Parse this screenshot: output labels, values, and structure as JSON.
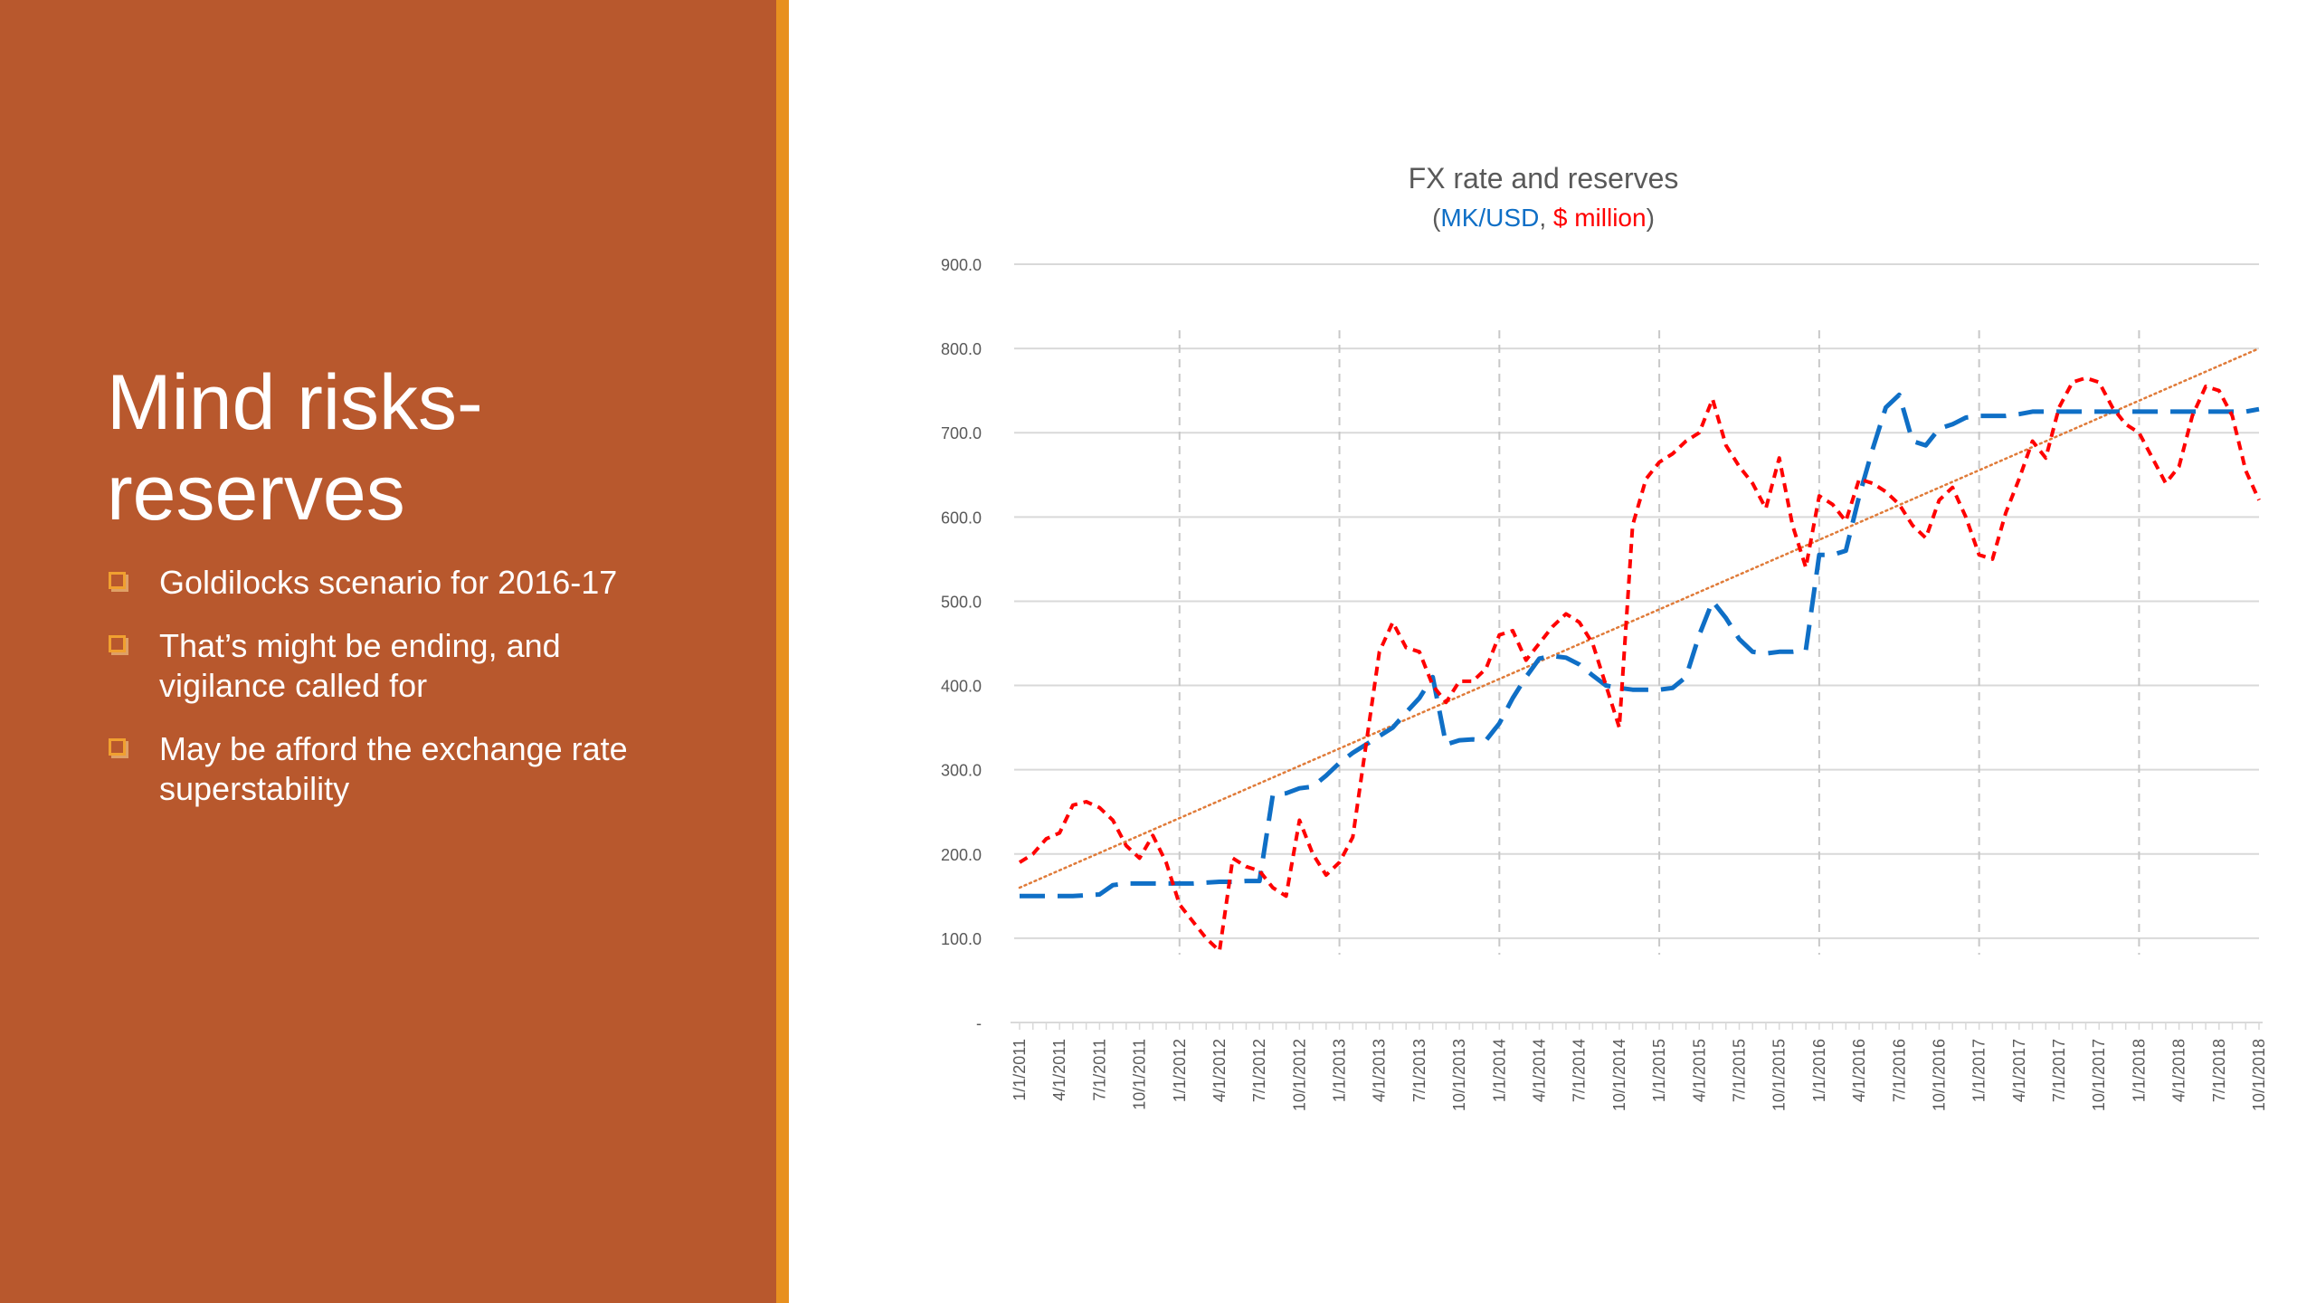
{
  "slide": {
    "title_line1": "Mind risks-",
    "title_line2": "reserves",
    "bullets": [
      {
        "text": "Goldilocks scenario for 2016-17"
      },
      {
        "text_line1": "That’s might be ending, and",
        "text_line2": "vigilance called for"
      },
      {
        "text_line1": "May be afford the exchange rate",
        "text_line2": "superstability"
      }
    ]
  },
  "colors": {
    "panel": "#b8582d",
    "accent": "#e8901f",
    "bullet": "#f0a030",
    "fx_series": "#0f6fc6",
    "reserves_series": "#ff0000",
    "trend": "#e07b39"
  },
  "chart_data": {
    "type": "line",
    "title": "FX rate and reserves",
    "subtitle_open": "(",
    "subtitle_fx": "MK/USD",
    "subtitle_sep": ", ",
    "subtitle_reserves": "$ million",
    "subtitle_close": ")",
    "ylim": [
      0,
      900
    ],
    "y_ticks": [
      {
        "value": 0,
        "label": "-"
      },
      {
        "value": 100,
        "label": "100.0"
      },
      {
        "value": 200,
        "label": "200.0"
      },
      {
        "value": 300,
        "label": "300.0"
      },
      {
        "value": 400,
        "label": "400.0"
      },
      {
        "value": 500,
        "label": "500.0"
      },
      {
        "value": 600,
        "label": "600.0"
      },
      {
        "value": 700,
        "label": "700.0"
      },
      {
        "value": 800,
        "label": "800.0"
      },
      {
        "value": 900,
        "label": "900.0"
      }
    ],
    "grid": "horizontal",
    "year_separators": [
      "1/1/2012",
      "1/1/2013",
      "1/1/2014",
      "1/1/2015",
      "1/1/2016",
      "1/1/2017",
      "1/1/2018"
    ],
    "x_labels": [
      "1/1/2011",
      "4/1/2011",
      "7/1/2011",
      "10/1/2011",
      "1/1/2012",
      "4/1/2012",
      "7/1/2012",
      "10/1/2012",
      "1/1/2013",
      "4/1/2013",
      "7/1/2013",
      "10/1/2013",
      "1/1/2014",
      "4/1/2014",
      "7/1/2014",
      "10/1/2014",
      "1/1/2015",
      "4/1/2015",
      "7/1/2015",
      "10/1/2015",
      "1/1/2016",
      "4/1/2016",
      "7/1/2016",
      "10/1/2016",
      "1/1/2017",
      "4/1/2017",
      "7/1/2017",
      "10/1/2017",
      "1/1/2018",
      "4/1/2018",
      "7/1/2018",
      "10/1/2018"
    ],
    "x": [
      "1/1/2011",
      "2/1/2011",
      "3/1/2011",
      "4/1/2011",
      "5/1/2011",
      "6/1/2011",
      "7/1/2011",
      "8/1/2011",
      "9/1/2011",
      "10/1/2011",
      "11/1/2011",
      "12/1/2011",
      "1/1/2012",
      "2/1/2012",
      "3/1/2012",
      "4/1/2012",
      "5/1/2012",
      "6/1/2012",
      "7/1/2012",
      "8/1/2012",
      "9/1/2012",
      "10/1/2012",
      "11/1/2012",
      "12/1/2012",
      "1/1/2013",
      "2/1/2013",
      "3/1/2013",
      "4/1/2013",
      "5/1/2013",
      "6/1/2013",
      "7/1/2013",
      "8/1/2013",
      "9/1/2013",
      "10/1/2013",
      "11/1/2013",
      "12/1/2013",
      "1/1/2014",
      "2/1/2014",
      "3/1/2014",
      "4/1/2014",
      "5/1/2014",
      "6/1/2014",
      "7/1/2014",
      "8/1/2014",
      "9/1/2014",
      "10/1/2014",
      "11/1/2014",
      "12/1/2014",
      "1/1/2015",
      "2/1/2015",
      "3/1/2015",
      "4/1/2015",
      "5/1/2015",
      "6/1/2015",
      "7/1/2015",
      "8/1/2015",
      "9/1/2015",
      "10/1/2015",
      "11/1/2015",
      "12/1/2015",
      "1/1/2016",
      "2/1/2016",
      "3/1/2016",
      "4/1/2016",
      "5/1/2016",
      "6/1/2016",
      "7/1/2016",
      "8/1/2016",
      "9/1/2016",
      "10/1/2016",
      "11/1/2016",
      "12/1/2016",
      "1/1/2017",
      "2/1/2017",
      "3/1/2017",
      "4/1/2017",
      "5/1/2017",
      "6/1/2017",
      "7/1/2017",
      "8/1/2017",
      "9/1/2017",
      "10/1/2017",
      "11/1/2017",
      "12/1/2017",
      "1/1/2018",
      "2/1/2018",
      "3/1/2018",
      "4/1/2018",
      "5/1/2018",
      "6/1/2018",
      "7/1/2018",
      "8/1/2018",
      "9/1/2018",
      "10/1/2018"
    ],
    "series": [
      {
        "name": "MK/USD",
        "style": "dashed",
        "values": [
          150,
          150,
          150,
          150,
          150,
          151,
          152,
          163,
          165,
          165,
          165,
          165,
          165,
          165,
          166,
          167,
          167,
          168,
          168,
          270,
          272,
          278,
          280,
          293,
          308,
          320,
          330,
          340,
          350,
          368,
          385,
          410,
          330,
          335,
          336,
          335,
          355,
          385,
          410,
          432,
          435,
          433,
          425,
          412,
          400,
          397,
          395,
          395,
          395,
          397,
          410,
          460,
          500,
          480,
          455,
          440,
          438,
          440,
          440,
          442,
          555,
          555,
          560,
          625,
          680,
          730,
          745,
          690,
          685,
          705,
          710,
          718,
          720,
          720,
          720,
          722,
          725,
          725,
          725,
          725,
          725,
          725,
          725,
          725,
          725,
          725,
          725,
          725,
          725,
          725,
          725,
          725,
          725,
          728
        ]
      },
      {
        "name": "$ million",
        "style": "dashed",
        "values": [
          190,
          200,
          218,
          225,
          258,
          262,
          255,
          240,
          210,
          195,
          222,
          190,
          140,
          120,
          100,
          85,
          195,
          185,
          180,
          160,
          150,
          240,
          200,
          175,
          190,
          220,
          330,
          440,
          475,
          445,
          440,
          400,
          380,
          405,
          405,
          420,
          460,
          465,
          430,
          450,
          470,
          485,
          475,
          450,
          400,
          350,
          590,
          645,
          665,
          675,
          690,
          700,
          740,
          685,
          660,
          640,
          610,
          670,
          590,
          540,
          625,
          615,
          595,
          645,
          640,
          630,
          615,
          590,
          575,
          620,
          635,
          600,
          555,
          550,
          605,
          645,
          690,
          670,
          730,
          760,
          765,
          760,
          730,
          710,
          700,
          670,
          640,
          660,
          720,
          755,
          750,
          720,
          655,
          620
        ]
      }
    ],
    "trendline": {
      "series": "$ million",
      "type": "linear",
      "start": 160,
      "end": 800
    }
  }
}
